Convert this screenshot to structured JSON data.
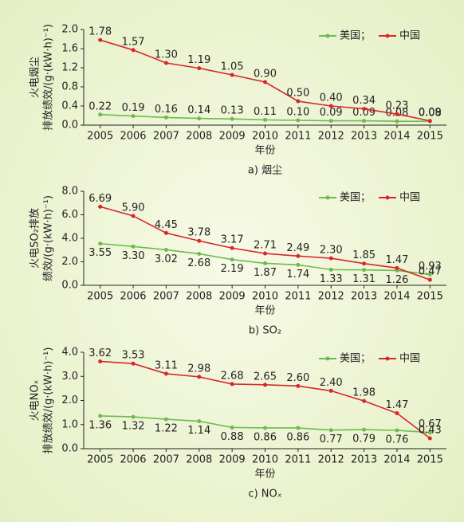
{
  "chart_data": [
    {
      "type": "line",
      "xlabel": "年份",
      "caption": "a) 烟尘",
      "ylabel": [
        "火电烟尘",
        "排放绩效/(g·(kW·h)⁻¹)"
      ],
      "categories": [
        "2005",
        "2006",
        "2007",
        "2008",
        "2009",
        "2010",
        "2011",
        "2012",
        "2013",
        "2014",
        "2015"
      ],
      "ylim": [
        0,
        2.0
      ],
      "yticks": [
        {
          "value": 0,
          "label": "0.0"
        },
        0.4,
        0.8,
        1.2,
        1.6,
        {
          "value": 2.0,
          "label": "2.0"
        }
      ],
      "series": [
        {
          "name": "美国；",
          "color": "#6dbb4e",
          "values": [
            0.22,
            0.19,
            0.16,
            0.14,
            0.13,
            0.11,
            0.1,
            0.09,
            0.09,
            0.08,
            0.08
          ],
          "value_labels": [
            "0.22",
            "0.19",
            "0.16",
            "0.14",
            "0.13",
            "0.11",
            "0.10",
            "0.09",
            "0.09",
            "0.08",
            "0.08"
          ]
        },
        {
          "name": "中国",
          "color": "#d8262c",
          "values": [
            1.78,
            1.57,
            1.3,
            1.19,
            1.05,
            0.9,
            0.5,
            0.4,
            0.34,
            0.23,
            0.09
          ],
          "value_labels": [
            "1.78",
            "1.57",
            "1.30",
            "1.19",
            "1.05",
            "0.90",
            "0.50",
            "0.40",
            "0.34",
            "0.23",
            "0.09"
          ]
        }
      ]
    },
    {
      "type": "line",
      "xlabel": "年份",
      "caption": "b) SO₂",
      "ylabel": [
        "火电SO₂排放",
        "绩效/(g·(kW·h)⁻¹)"
      ],
      "categories": [
        "2005",
        "2006",
        "2007",
        "2008",
        "2009",
        "2010",
        "2011",
        "2012",
        "2013",
        "2014",
        "2015"
      ],
      "ylim": [
        0,
        8.0
      ],
      "yticks": [
        {
          "value": 0,
          "label": "0.0"
        },
        {
          "value": 2,
          "label": "2.0"
        },
        {
          "value": 4,
          "label": "4.0"
        },
        {
          "value": 6,
          "label": "6.0"
        },
        {
          "value": 8,
          "label": "8.0"
        }
      ],
      "series": [
        {
          "name": "美国；",
          "color": "#6dbb4e",
          "values": [
            3.55,
            3.3,
            3.02,
            2.68,
            2.19,
            1.87,
            1.74,
            1.33,
            1.31,
            1.26,
            0.93
          ],
          "value_labels": [
            "3.55",
            "3.30",
            "3.02",
            "2.68",
            "2.19",
            "1.87",
            "1.74",
            "1.33",
            "1.31",
            "1.26",
            "0.93"
          ]
        },
        {
          "name": "中国",
          "color": "#d8262c",
          "values": [
            6.69,
            5.9,
            4.45,
            3.78,
            3.17,
            2.71,
            2.49,
            2.3,
            1.85,
            1.47,
            0.47
          ],
          "value_labels": [
            "6.69",
            "5.90",
            "4.45",
            "3.78",
            "3.17",
            "2.71",
            "2.49",
            "2.30",
            "1.85",
            "1.47",
            "0.47"
          ]
        }
      ]
    },
    {
      "type": "line",
      "xlabel": "年份",
      "caption": "c) NOₓ",
      "ylabel": [
        "火电NOₓ",
        "排放绩效/(g·(kW·h)⁻¹)"
      ],
      "categories": [
        "2005",
        "2006",
        "2007",
        "2008",
        "2009",
        "2010",
        "2011",
        "2012",
        "2013",
        "2014",
        "2015"
      ],
      "ylim": [
        0,
        4.0
      ],
      "yticks": [
        {
          "value": 0,
          "label": "0.0"
        },
        {
          "value": 1,
          "label": "1.0"
        },
        {
          "value": 2,
          "label": "2.0"
        },
        {
          "value": 3,
          "label": "3.0"
        },
        {
          "value": 4,
          "label": "4.0"
        }
      ],
      "series": [
        {
          "name": "美国；",
          "color": "#6dbb4e",
          "values": [
            1.36,
            1.32,
            1.22,
            1.14,
            0.88,
            0.86,
            0.86,
            0.77,
            0.79,
            0.76,
            0.67
          ],
          "value_labels": [
            "1.36",
            "1.32",
            "1.22",
            "1.14",
            "0.88",
            "0.86",
            "0.86",
            "0.77",
            "0.79",
            "0.76",
            "0.67"
          ]
        },
        {
          "name": "中国",
          "color": "#d8262c",
          "values": [
            3.62,
            3.53,
            3.11,
            2.98,
            2.68,
            2.65,
            2.6,
            2.4,
            1.98,
            1.47,
            0.43
          ],
          "value_labels": [
            "3.62",
            "3.53",
            "3.11",
            "2.98",
            "2.68",
            "2.65",
            "2.60",
            "2.40",
            "1.98",
            "1.47",
            "0.43"
          ]
        }
      ]
    }
  ]
}
